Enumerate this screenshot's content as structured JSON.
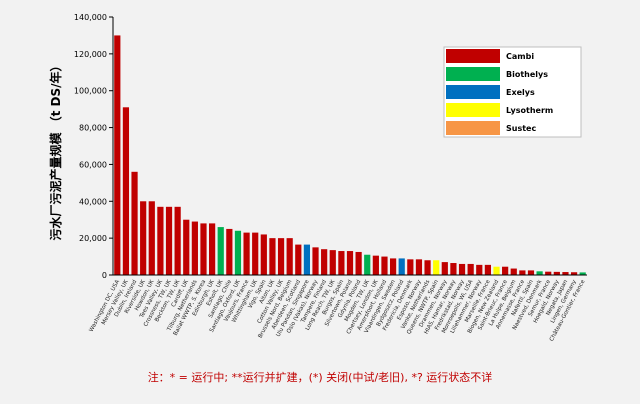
{
  "chart_data": {
    "type": "bar",
    "ylabel": "污水厂污泥产量规模 （t DS/年）",
    "ylim": [
      0,
      140000
    ],
    "yticks": [
      "0",
      "20,000",
      "40,000",
      "60,000",
      "80,000",
      "100,000",
      "120,000",
      "140,000"
    ],
    "ytick_values": [
      0,
      20000,
      40000,
      60000,
      80000,
      100000,
      120000,
      140000
    ],
    "grid": false,
    "legend_position": "top-right",
    "series": [
      {
        "name": "Cambi",
        "color": "#c00000"
      },
      {
        "name": "Biothelys",
        "color": "#00b050"
      },
      {
        "name": "Exelys",
        "color": "#0070c0"
      },
      {
        "name": "Lysotherm",
        "color": "#ffff00"
      },
      {
        "name": "Sustec",
        "color": "#f79646"
      }
    ],
    "categories": [
      "Washington DC, USA",
      "Mersey Valley, UK",
      "Dublin, Ireland",
      "Riverside, UK",
      "Howdon, UK",
      "Tees Valley, UK",
      "Crossness, TW, UK",
      "Beckton, TW, UK",
      "Cardiff, UK",
      "Tilburg, Netherlands",
      "Bailat WWTP, S. Korea",
      "Edinburgh, UK",
      "Esholt, UK",
      "Santiago, Chile",
      "Santiago, Oxford, UK",
      "Vaujours, France",
      "Whittingham, UK",
      "Vigo, Spain",
      "Alton, UK",
      "Cotton Valley, UK",
      "Brussels Nord, Belgium",
      "Aberdeen, Scotland",
      "Ulu Pandan, Singapore",
      "Oslo (Vakas), Norway",
      "Tampere, Finland",
      "Long Reach, TW, UK",
      "Burgos, Spain",
      "Silvertown, Poland",
      "Gdynia, Poland",
      "Mogden, TW, UK",
      "Chertsey, London, UK",
      "Amersfoort, Holland",
      "Vlaardingen, Sweden",
      "Bydgoszcz, Poland",
      "Fredericia, Denmark",
      "Esposo, Norway",
      "Vanke, Netherlands",
      "Queens, NWTP, Spain",
      "Drammen, Norway",
      "HIAS, Hamar, Norway",
      "Fredrikstad, Norway",
      "Monroepolis, Wi, USA",
      "Lillehammer, Norway",
      "Marseille, France",
      "Biogen, New Zealand",
      "Saint-Brieuc, France",
      "La Hulpe, Belgium",
      "Annemasse, France",
      "Nafertil, Spain",
      "Naestved, Denmark",
      "Semur, France",
      "Hoegald, Norway",
      "Negata, Japan",
      "Lingen, Germany",
      "Château-Gontier, France"
    ],
    "values": [
      130000,
      91000,
      56000,
      40000,
      40000,
      37000,
      37000,
      37000,
      30000,
      29000,
      28000,
      28000,
      26000,
      25000,
      24000,
      23000,
      23000,
      22000,
      20000,
      20000,
      20000,
      16500,
      16500,
      15000,
      14000,
      13500,
      13000,
      13000,
      12500,
      11000,
      10500,
      10000,
      9000,
      9000,
      8500,
      8500,
      8000,
      8000,
      7000,
      6500,
      6000,
      6000,
      5500,
      5500,
      4500,
      4500,
      3500,
      2500,
      2500,
      2000,
      1800,
      1700,
      1600,
      1500,
      1400
    ],
    "value_series": [
      0,
      0,
      0,
      0,
      0,
      0,
      0,
      0,
      0,
      0,
      0,
      0,
      1,
      0,
      1,
      0,
      0,
      0,
      0,
      0,
      0,
      0,
      2,
      0,
      0,
      0,
      0,
      0,
      0,
      1,
      0,
      0,
      0,
      2,
      0,
      0,
      0,
      3,
      0,
      0,
      0,
      0,
      0,
      0,
      3,
      0,
      0,
      0,
      0,
      1,
      0,
      0,
      0,
      0,
      1
    ],
    "note": "注：* = 运行中; **运行并扩建，(*) 关闭(中试/老旧), *? 运行状态不详"
  }
}
